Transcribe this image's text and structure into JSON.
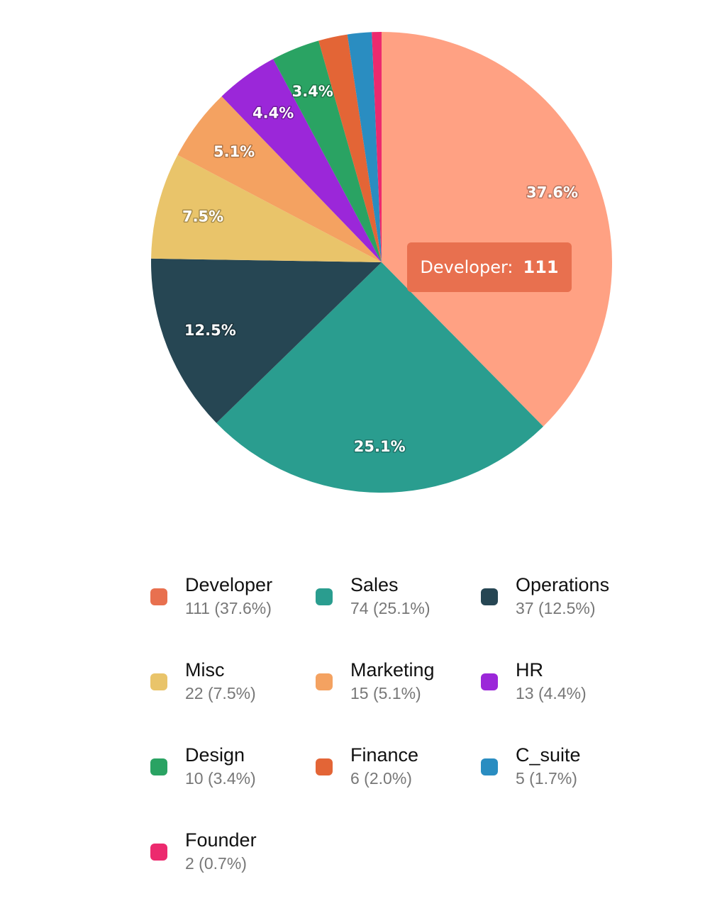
{
  "chart_data": {
    "type": "pie",
    "slices": [
      {
        "label": "Developer",
        "value": 111,
        "percent": "37.6%",
        "color": "#ffa183",
        "legend_color": "#e8704f"
      },
      {
        "label": "Sales",
        "value": 74,
        "percent": "25.1%",
        "color": "#2a9d8f",
        "legend_color": "#2a9d8f"
      },
      {
        "label": "Operations",
        "value": 37,
        "percent": "12.5%",
        "color": "#264653",
        "legend_color": "#264653"
      },
      {
        "label": "Misc",
        "value": 22,
        "percent": "7.5%",
        "color": "#e9c46a",
        "legend_color": "#e9c46a"
      },
      {
        "label": "Marketing",
        "value": 15,
        "percent": "5.1%",
        "color": "#f4a261",
        "legend_color": "#f4a261"
      },
      {
        "label": "HR",
        "value": 13,
        "percent": "4.4%",
        "color": "#9b27d9",
        "legend_color": "#9b27d9"
      },
      {
        "label": "Design",
        "value": 10,
        "percent": "3.4%",
        "color": "#2aa363",
        "legend_color": "#2aa363"
      },
      {
        "label": "Finance",
        "value": 6,
        "percent": "2.0%",
        "color": "#e36536",
        "legend_color": "#e36536"
      },
      {
        "label": "C_suite",
        "value": 5,
        "percent": "1.7%",
        "color": "#2a8dc1",
        "legend_color": "#2a8dc1"
      },
      {
        "label": "Founder",
        "value": 2,
        "percent": "0.7%",
        "color": "#ec2a6e",
        "legend_color": "#ec2a6e"
      }
    ],
    "slice_labels_shown": [
      "37.6%",
      "25.1%",
      "12.5%",
      "7.5%",
      "5.1%",
      "4.4%",
      "3.4%"
    ],
    "legend": [
      {
        "name": "Developer",
        "detail": "111 (37.6%)"
      },
      {
        "name": "Sales",
        "detail": "74 (25.1%)"
      },
      {
        "name": "Operations",
        "detail": "37 (12.5%)"
      },
      {
        "name": "Misc",
        "detail": "22 (7.5%)"
      },
      {
        "name": "Marketing",
        "detail": "15 (5.1%)"
      },
      {
        "name": "HR",
        "detail": "13 (4.4%)"
      },
      {
        "name": "Design",
        "detail": "10 (3.4%)"
      },
      {
        "name": "Finance",
        "detail": "6 (2.0%)"
      },
      {
        "name": "C_suite",
        "detail": "5 (1.7%)"
      },
      {
        "name": "Founder",
        "detail": "2 (0.7%)"
      }
    ],
    "legend_placement": "bottom",
    "tooltip": {
      "name": "Developer:",
      "value": "111",
      "background": "#e8704f"
    }
  }
}
